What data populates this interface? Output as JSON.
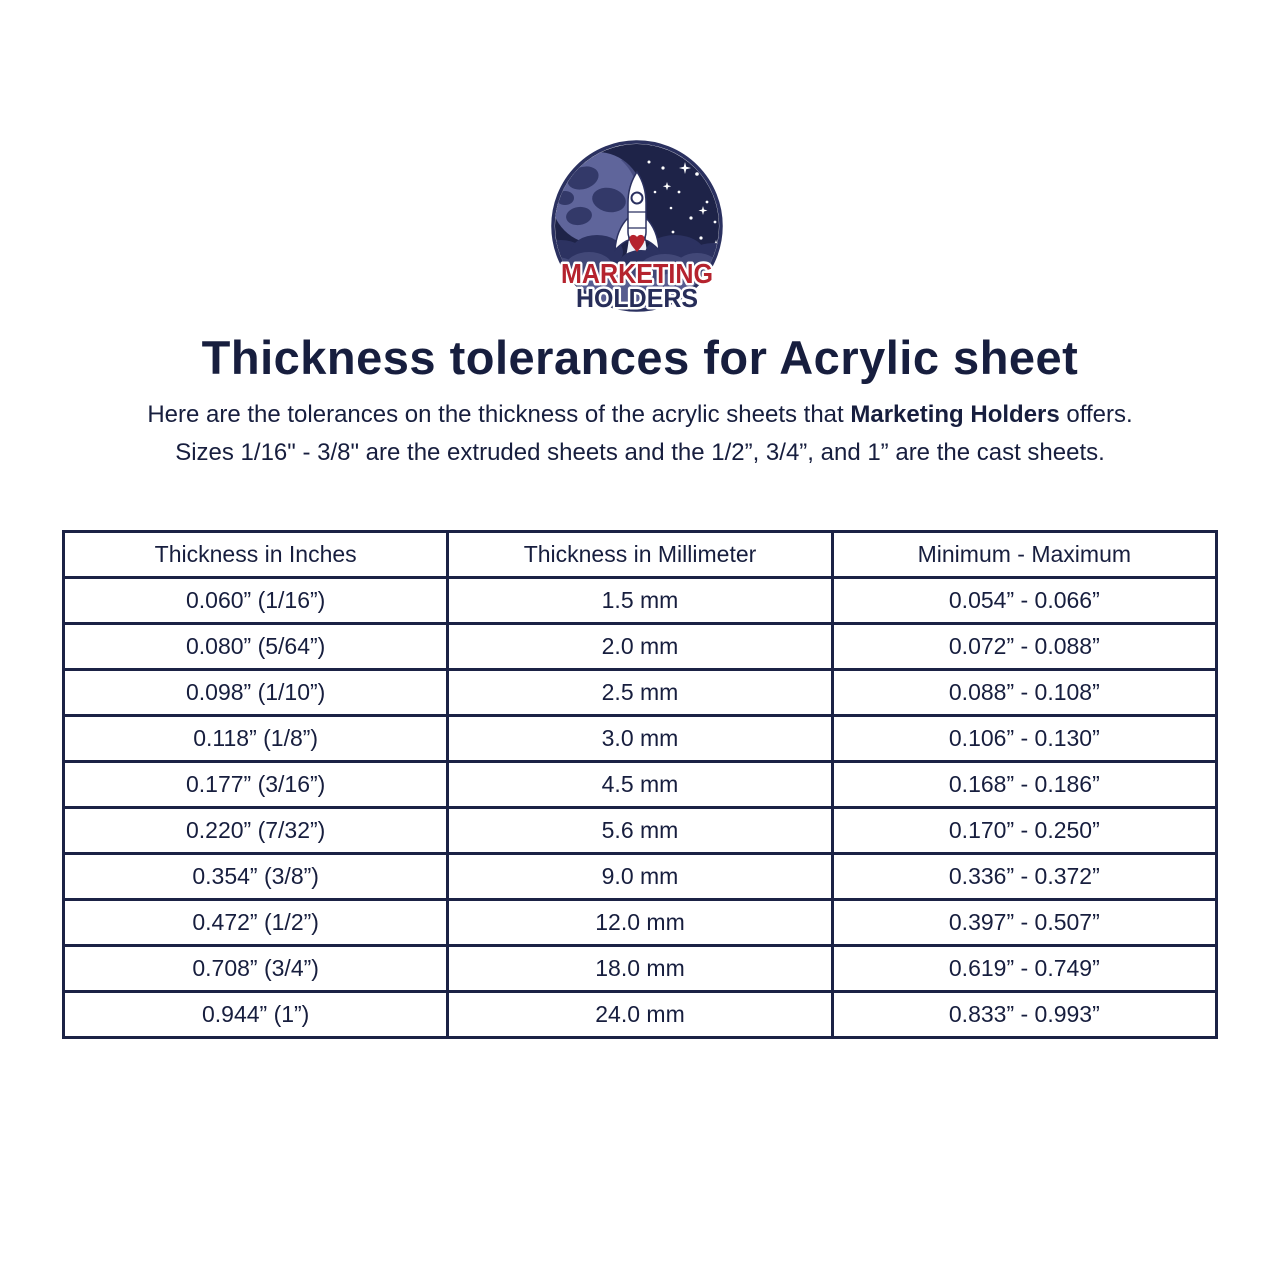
{
  "logo": {
    "line1": "MARKETING",
    "line2": "HOLDERS",
    "colors": {
      "red": "#b5232e",
      "navy": "#272d59",
      "space": "#1e2348",
      "ring": "#2b3160",
      "planet": "#5f659b",
      "planet_patch": "#333969",
      "cloud_back": "#2c3261",
      "cloud_mid": "#424878",
      "cloud_front": "#575c90",
      "rocket_white": "#ffffff",
      "plume": "#eef0f7"
    }
  },
  "title": "Thickness tolerances for Acrylic sheet",
  "intro": {
    "line1_prefix": "Here are the tolerances on the thickness of the acrylic sheets that ",
    "line1_bold": "Marketing Holders",
    "line1_suffix": " offers.",
    "line2": "Sizes 1/16\" - 3/8\" are the extruded sheets and the 1/2”, 3/4”, and 1” are the cast sheets."
  },
  "table": {
    "headers": [
      "Thickness in Inches",
      "Thickness in Millimeter",
      "Minimum - Maximum"
    ],
    "rows": [
      [
        "0.060” (1/16”)",
        "1.5 mm",
        "0.054” - 0.066”"
      ],
      [
        "0.080” (5/64”)",
        "2.0 mm",
        "0.072” - 0.088”"
      ],
      [
        "0.098” (1/10”)",
        "2.5 mm",
        "0.088” - 0.108”"
      ],
      [
        "0.118” (1/8”)",
        "3.0 mm",
        "0.106” - 0.130”"
      ],
      [
        "0.177” (3/16”)",
        "4.5 mm",
        "0.168” - 0.186”"
      ],
      [
        "0.220” (7/32”)",
        "5.6 mm",
        "0.170” - 0.250”"
      ],
      [
        "0.354” (3/8”)",
        "9.0 mm",
        "0.336” - 0.372”"
      ],
      [
        "0.472” (1/2”)",
        "12.0 mm",
        "0.397” - 0.507”"
      ],
      [
        "0.708” (3/4”)",
        "18.0 mm",
        "0.619” - 0.749”"
      ],
      [
        "0.944” (1”)",
        "24.0 mm",
        "0.833” - 0.993”"
      ]
    ]
  },
  "colors": {
    "text_navy": "#171e3e",
    "table_border": "#1b2245",
    "background": "#ffffff"
  }
}
